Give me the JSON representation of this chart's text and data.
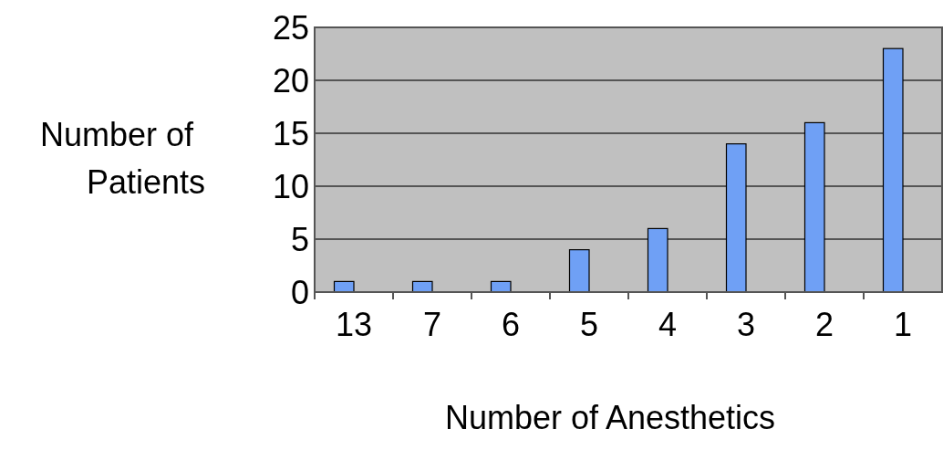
{
  "chart_data": {
    "type": "bar",
    "xlabel": "Number of Anesthetics",
    "ylabel": "Number of Patients",
    "categories": [
      "13",
      "7",
      "6",
      "5",
      "4",
      "3",
      "2",
      "1"
    ],
    "values": [
      1,
      1,
      1,
      4,
      6,
      14,
      16,
      23
    ],
    "color": "#6fa0f5",
    "ylim": [
      0,
      25
    ],
    "yticks": [
      0,
      5,
      10,
      15,
      20,
      25
    ],
    "grid": "y"
  }
}
